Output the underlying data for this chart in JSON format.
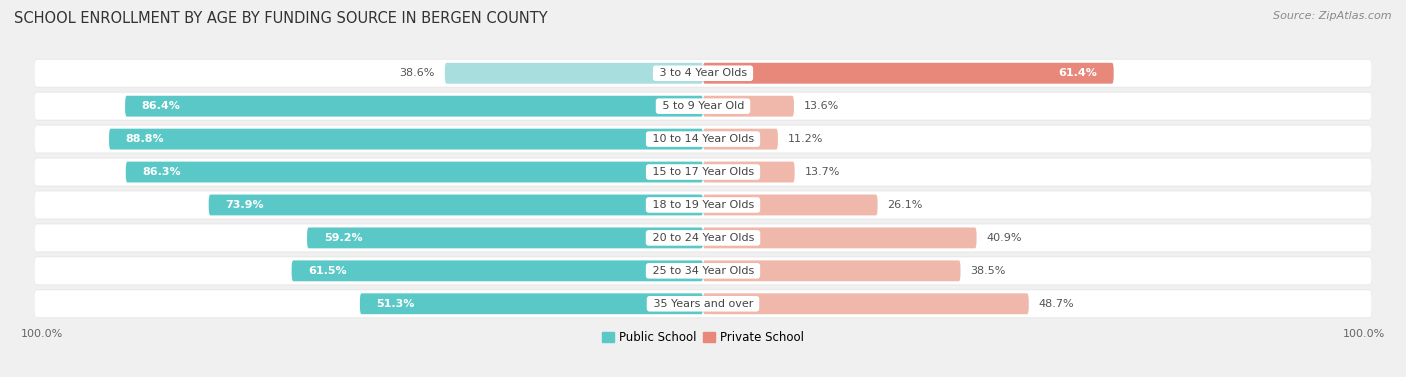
{
  "title": "SCHOOL ENROLLMENT BY AGE BY FUNDING SOURCE IN BERGEN COUNTY",
  "source": "Source: ZipAtlas.com",
  "categories": [
    "3 to 4 Year Olds",
    "5 to 9 Year Old",
    "10 to 14 Year Olds",
    "15 to 17 Year Olds",
    "18 to 19 Year Olds",
    "20 to 24 Year Olds",
    "25 to 34 Year Olds",
    "35 Years and over"
  ],
  "public_pct": [
    38.6,
    86.4,
    88.8,
    86.3,
    73.9,
    59.2,
    61.5,
    51.3
  ],
  "private_pct": [
    61.4,
    13.6,
    11.2,
    13.7,
    26.1,
    40.9,
    38.5,
    48.7
  ],
  "public_color": "#5bc8c8",
  "private_color": "#e8887a",
  "public_color_light": "#a8dede",
  "private_color_light": "#f0b8aa",
  "public_label": "Public School",
  "private_label": "Private School",
  "axis_label_left": "100.0%",
  "axis_label_right": "100.0%",
  "background_color": "#f0f0f0",
  "row_bg_color": "#e8e8e8",
  "row_inner_color": "#ffffff",
  "title_fontsize": 10.5,
  "source_fontsize": 8,
  "bar_height": 0.72,
  "value_fontsize": 8,
  "category_fontsize": 8,
  "legend_fontsize": 8.5,
  "xlim": 100
}
